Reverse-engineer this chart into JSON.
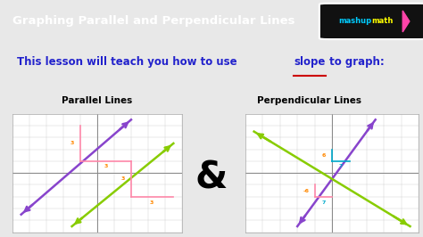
{
  "title": "Graphing Parallel and Perpendicular Lines",
  "subtitle_part1": "This lesson will teach you how to use ",
  "subtitle_slope": "slope",
  "subtitle_part2": " to graph:",
  "subtitle_color": "#2222cc",
  "slope_underline_color": "#cc0000",
  "label_parallel": "Parallel Lines",
  "label_perpendicular": "Perpendicular Lines",
  "ampersand": "&",
  "header_bg": "#1a1a1a",
  "body_bg": "#e8e8e8",
  "header_text_color": "#ffffff",
  "logo_bg": "#111111",
  "logo_text1_color": "#00ccff",
  "logo_text2_color": "#ffff00",
  "logo_arrow_color": "#ff44aa",
  "grid_bg": "#ffffff",
  "grid_line_color": "#cccccc",
  "axis_color": "#888888",
  "parallel_line1_color": "#8844cc",
  "parallel_line2_color": "#88cc00",
  "perp_line1_color": "#8844cc",
  "perp_line2_color": "#88cc00",
  "rise_run_color_pink": "#ff88aa",
  "rise_run_color_cyan": "#00aacc",
  "number_color_orange": "#ff8800",
  "number_color_cyan": "#00aacc"
}
